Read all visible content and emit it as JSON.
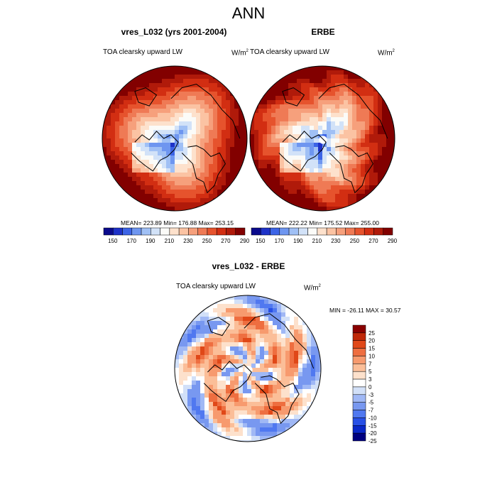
{
  "main_title": "ANN",
  "panels": [
    {
      "title": "vres_L032 (yrs 2001-2004)",
      "left_label": "TOA clearsky upward LW",
      "right_label": "W/m",
      "right_label_sup": "2",
      "stats": "MEAN= 223.89  Min= 176.88  Max= 253.15"
    },
    {
      "title": "ERBE",
      "left_label": "TOA clearsky upward LW",
      "right_label": "W/m",
      "right_label_sup": "2",
      "stats": "MEAN= 222.22  Min= 175.52  Max= 255.00"
    },
    {
      "title": "vres_L032 - ERBE",
      "left_label": "TOA clearsky upward LW",
      "right_label": "W/m",
      "right_label_sup": "2",
      "stats": "MIN = -26.11 MAX =  30.57"
    }
  ],
  "colors": {
    "abs_scale": [
      "#0a0a8c",
      "#1e32c8",
      "#3c64e6",
      "#6e96f0",
      "#a0c0f5",
      "#d2e2f8",
      "#fbfbf8",
      "#fde1cc",
      "#fbc3a3",
      "#f6a07c",
      "#ef7a55",
      "#e6532d",
      "#d22e12",
      "#b01a0a",
      "#820000"
    ],
    "diff_scale": [
      "#000080",
      "#0a28c8",
      "#2850e6",
      "#5078f0",
      "#7898f0",
      "#a0b8f5",
      "#d2e0f8",
      "#ffffff",
      "#fde1cc",
      "#fbbe98",
      "#f79a6e",
      "#ee6e40",
      "#e04818",
      "#c02808",
      "#8a0000"
    ],
    "coast": "#000000"
  },
  "chart_data": [
    {
      "type": "heatmap",
      "title": "vres_L032 (yrs 2001-2004)",
      "field": "TOA clearsky upward LW",
      "units": "W/m2",
      "mean": 223.89,
      "min": 176.88,
      "max": 253.15,
      "colorbar_ticks": [
        "150",
        "170",
        "190",
        "210",
        "230",
        "250",
        "270",
        "290"
      ],
      "colorbar_levels": [
        150,
        160,
        170,
        180,
        190,
        200,
        210,
        220,
        230,
        240,
        250,
        260,
        270,
        280,
        290
      ]
    },
    {
      "type": "heatmap",
      "title": "ERBE",
      "field": "TOA clearsky upward LW",
      "units": "W/m2",
      "mean": 222.22,
      "min": 175.52,
      "max": 255.0,
      "colorbar_ticks": [
        "150",
        "170",
        "190",
        "210",
        "230",
        "250",
        "270",
        "290"
      ],
      "colorbar_levels": [
        150,
        160,
        170,
        180,
        190,
        200,
        210,
        220,
        230,
        240,
        250,
        260,
        270,
        280,
        290
      ]
    },
    {
      "type": "heatmap",
      "title": "vres_L032 - ERBE",
      "field": "TOA clearsky upward LW",
      "units": "W/m2",
      "min": -26.11,
      "max": 30.57,
      "colorbar_ticks": [
        "25",
        "20",
        "15",
        "10",
        "7",
        "5",
        "3",
        "0",
        "-3",
        "-5",
        "-7",
        "-10",
        "-15",
        "-20",
        "-25"
      ]
    }
  ]
}
